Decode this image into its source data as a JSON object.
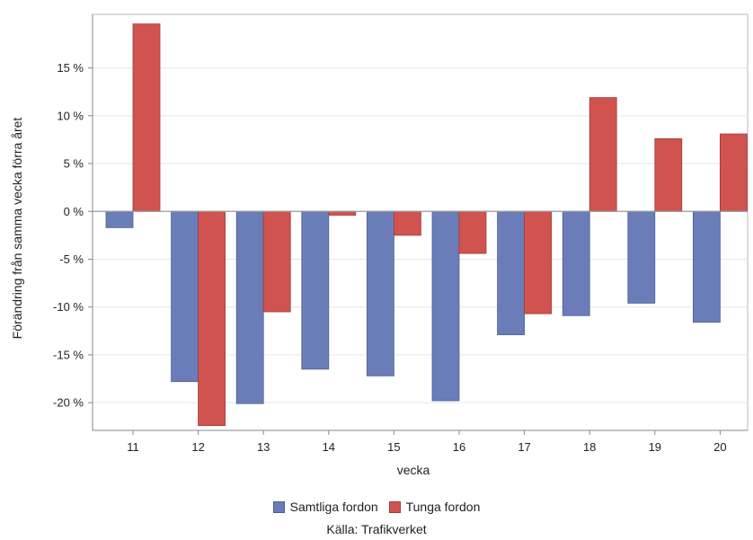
{
  "chart_data": {
    "type": "bar",
    "categories": [
      "11",
      "12",
      "13",
      "14",
      "15",
      "16",
      "17",
      "18",
      "19",
      "20"
    ],
    "series": [
      {
        "name": "Samtliga fordon",
        "color": "#6b7db8",
        "values": [
          -1.7,
          -17.8,
          -20.1,
          -16.5,
          -17.2,
          -19.8,
          -12.9,
          -10.9,
          -9.6,
          -11.6
        ]
      },
      {
        "name": "Tunga fordon",
        "color": "#d0534f",
        "values": [
          19.6,
          -22.4,
          -10.5,
          -0.4,
          -2.5,
          -4.4,
          -10.7,
          11.9,
          7.6,
          8.1
        ]
      }
    ],
    "yticks": [
      15,
      10,
      5,
      0,
      -5,
      -10,
      -15,
      -20
    ],
    "ytick_labels": [
      "15 %",
      "10 %",
      "5 %",
      "0 %",
      "-5 %",
      "-10 %",
      "-15 %",
      "-20 %"
    ],
    "ylim": [
      -22.9,
      20.6
    ],
    "xlabel": "vecka",
    "ylabel": "Förändring från samma vecka förra året",
    "grid": true,
    "legend_position": "bottom"
  },
  "source_text": "Källa: Trafikverket"
}
